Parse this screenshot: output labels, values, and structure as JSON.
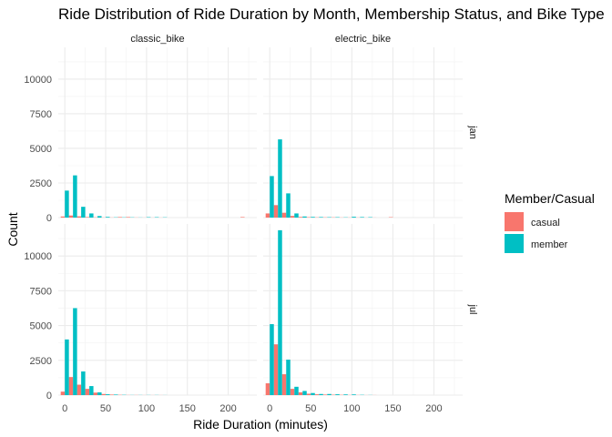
{
  "chart_data": {
    "type": "bar",
    "title": "Ride Distribution of Ride Duration by Month, Membership Status, and Bike Type",
    "xlabel": "Ride Duration (minutes)",
    "ylabel": "Count",
    "xlim": [
      -8,
      235
    ],
    "ylim": [
      0,
      12300
    ],
    "x_ticks": [
      0,
      50,
      100,
      150,
      200
    ],
    "y_ticks": [
      0,
      2500,
      5000,
      7500,
      10000
    ],
    "x_tick_labels": [
      "0",
      "50",
      "100",
      "150",
      "200"
    ],
    "y_tick_labels": [
      "0",
      "2500",
      "5000",
      "7500",
      "10000"
    ],
    "bin_width": 10,
    "column_facets": [
      "classic_bike",
      "electric_bike"
    ],
    "row_facets": [
      "jan",
      "jul"
    ],
    "legend": {
      "title": "Member/Casual",
      "position": "right",
      "items": [
        {
          "name": "casual",
          "color": "#F8766D"
        },
        {
          "name": "member",
          "color": "#00BFC4"
        }
      ]
    },
    "bin_centers": [
      0,
      10,
      20,
      30,
      40,
      50,
      60,
      70,
      80,
      90,
      100,
      110,
      120,
      130,
      140,
      150,
      160,
      170,
      180,
      190,
      200,
      210,
      220
    ],
    "panels": [
      {
        "column": "classic_bike",
        "row": "jan",
        "series": [
          {
            "name": "casual",
            "values": [
              80,
              150,
              90,
              40,
              20,
              10,
              10,
              40,
              40,
              10,
              5,
              5,
              5,
              0,
              0,
              0,
              0,
              0,
              0,
              0,
              0,
              0,
              40
            ]
          },
          {
            "name": "member",
            "values": [
              1950,
              3050,
              780,
              300,
              110,
              50,
              20,
              20,
              20,
              10,
              30,
              30,
              20,
              0,
              0,
              0,
              0,
              0,
              0,
              0,
              0,
              0,
              0
            ]
          }
        ]
      },
      {
        "column": "electric_bike",
        "row": "jan",
        "series": [
          {
            "name": "casual",
            "values": [
              300,
              900,
              350,
              120,
              50,
              30,
              20,
              20,
              20,
              10,
              10,
              10,
              5,
              5,
              0,
              30,
              0,
              0,
              0,
              0,
              0,
              0,
              0
            ]
          },
          {
            "name": "member",
            "values": [
              3000,
              5650,
              1750,
              300,
              80,
              50,
              40,
              30,
              30,
              20,
              60,
              40,
              30,
              0,
              0,
              0,
              0,
              0,
              0,
              0,
              0,
              0,
              0
            ]
          }
        ]
      },
      {
        "column": "classic_bike",
        "row": "jul",
        "series": [
          {
            "name": "casual",
            "values": [
              250,
              1300,
              750,
              450,
              180,
              80,
              40,
              20,
              10,
              10,
              5,
              5,
              5,
              0,
              0,
              0,
              0,
              0,
              0,
              0,
              0,
              0,
              0
            ]
          },
          {
            "name": "member",
            "values": [
              4000,
              6250,
              1700,
              650,
              200,
              60,
              40,
              20,
              10,
              10,
              10,
              10,
              5,
              0,
              0,
              0,
              0,
              0,
              0,
              0,
              0,
              0,
              0
            ]
          }
        ]
      },
      {
        "column": "electric_bike",
        "row": "jul",
        "series": [
          {
            "name": "casual",
            "values": [
              850,
              3650,
              1500,
              450,
              200,
              100,
              60,
              40,
              30,
              20,
              10,
              10,
              5,
              5,
              0,
              0,
              0,
              0,
              0,
              0,
              0,
              0,
              0
            ]
          },
          {
            "name": "member",
            "values": [
              5100,
              11850,
              2550,
              600,
              300,
              150,
              80,
              80,
              60,
              50,
              50,
              20,
              10,
              0,
              0,
              0,
              0,
              0,
              0,
              0,
              0,
              0,
              0
            ]
          }
        ]
      }
    ]
  }
}
